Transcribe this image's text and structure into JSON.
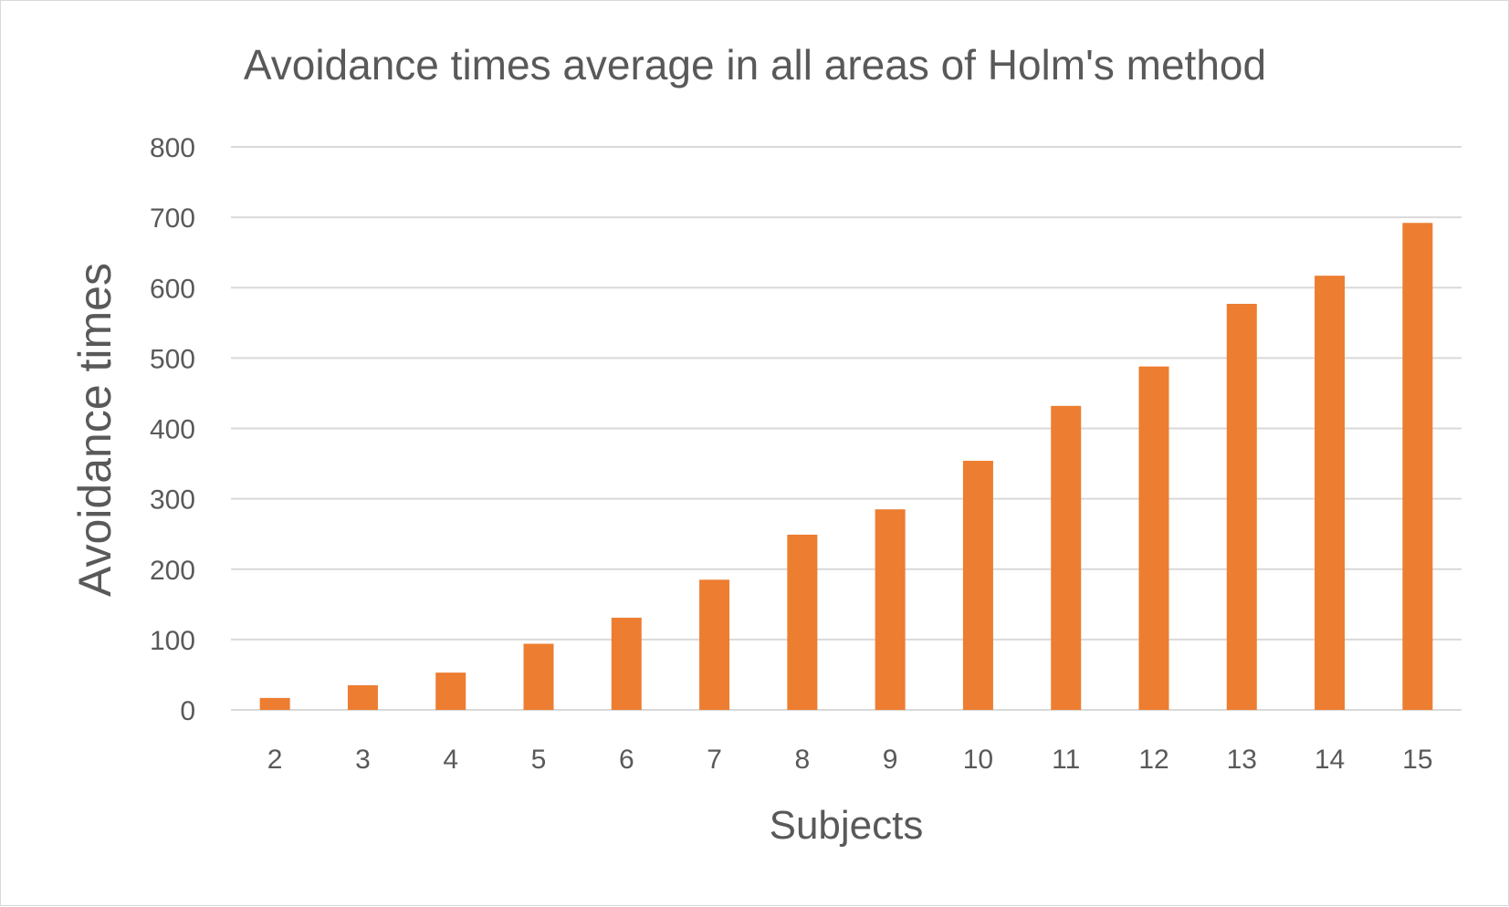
{
  "chart_data": {
    "type": "bar",
    "title": "Avoidance times average in all areas of Holm's method",
    "xlabel": "Subjects",
    "ylabel": "Avoidance times",
    "categories": [
      "2",
      "3",
      "4",
      "5",
      "6",
      "7",
      "8",
      "9",
      "10",
      "11",
      "12",
      "13",
      "14",
      "15"
    ],
    "values": [
      17,
      35,
      53,
      94,
      131,
      185,
      249,
      285,
      354,
      432,
      488,
      577,
      617,
      692
    ],
    "ylim": [
      0,
      800
    ],
    "yticks": [
      "0",
      "100",
      "200",
      "300",
      "400",
      "500",
      "600",
      "700",
      "800"
    ],
    "grid": true,
    "legend": "none",
    "colors": {
      "bar": "#ED7D31",
      "grid": "#d9d9d9",
      "text": "#595959"
    }
  }
}
